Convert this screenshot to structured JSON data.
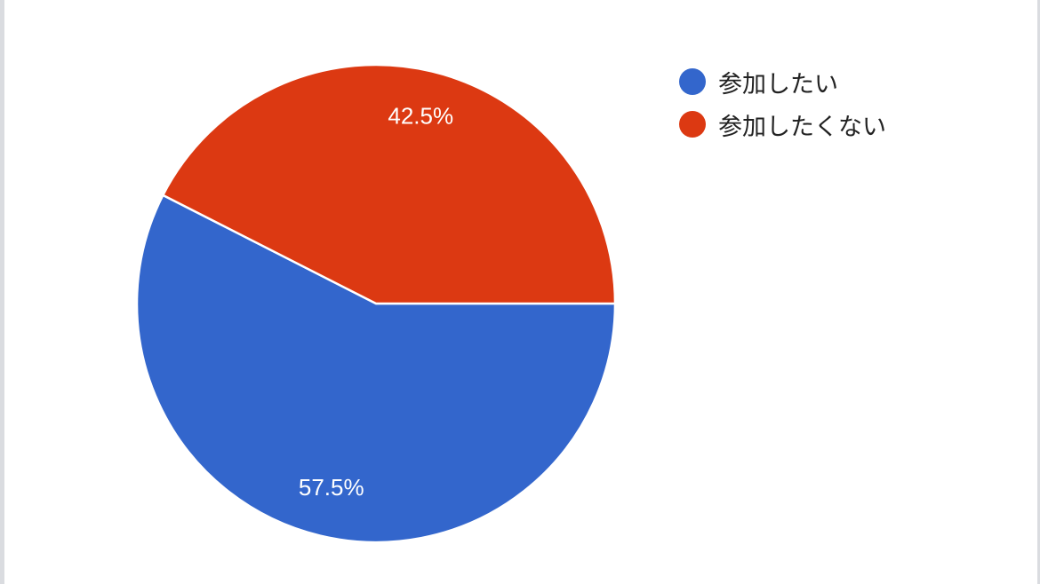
{
  "chart_data": {
    "type": "pie",
    "title": "",
    "slices": [
      {
        "name": "参加したい",
        "value": 57.5,
        "label": "57.5%",
        "color": "#3366cc"
      },
      {
        "name": "参加したくない",
        "value": 42.5,
        "label": "42.5%",
        "color": "#dc3912"
      }
    ],
    "legend": {
      "position": "right",
      "items": [
        {
          "label": "参加したい",
          "color": "#3366cc"
        },
        {
          "label": "参加したくない",
          "color": "#dc3912"
        }
      ]
    },
    "start": "right",
    "direction": "clockwise"
  }
}
